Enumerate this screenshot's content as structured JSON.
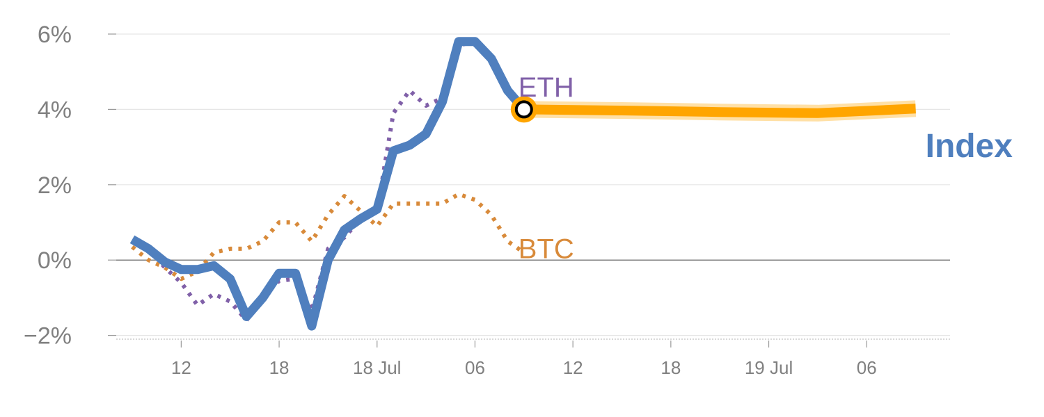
{
  "chart_data": {
    "type": "line",
    "y_ticks": [
      "6%",
      "4%",
      "2%",
      "0%",
      "−2%"
    ],
    "y_tick_values": [
      6,
      4,
      2,
      0,
      -2
    ],
    "ylim": [
      -2.1,
      6.3
    ],
    "x_ticks": [
      "12",
      "18",
      "18 Jul",
      "06",
      "12",
      "18",
      "19 Jul",
      "06"
    ],
    "x_tick_index": [
      3,
      9,
      15,
      21,
      27,
      33,
      39,
      45
    ],
    "x_range": [
      -1,
      50
    ],
    "grid": true,
    "colors": {
      "index": "#4f7fbe",
      "eth": "#8060a8",
      "btc": "#d88a3a",
      "forecast": "#ffa500",
      "grid": "#e6e6e6",
      "zero_line": "#808080",
      "tick_text": "#808080"
    },
    "labels": {
      "eth": "ETH",
      "btc": "BTC",
      "index": "Index"
    },
    "series": [
      {
        "key": "index",
        "name": "Index",
        "style": "solid",
        "x": [
          0,
          1,
          2,
          3,
          4,
          5,
          6,
          7,
          8,
          9,
          10,
          11,
          12,
          13,
          14,
          15,
          16,
          17,
          18,
          19,
          20,
          21,
          22,
          23,
          24
        ],
        "values": [
          0.55,
          0.3,
          -0.05,
          -0.25,
          -0.25,
          -0.15,
          -0.5,
          -1.5,
          -1.0,
          -0.35,
          -0.35,
          -1.75,
          0.0,
          0.8,
          1.1,
          1.35,
          2.9,
          3.05,
          3.35,
          4.2,
          5.8,
          5.8,
          5.35,
          4.5,
          4.0
        ]
      },
      {
        "key": "eth",
        "name": "ETH",
        "style": "dotted",
        "x": [
          0,
          1,
          2,
          3,
          4,
          5,
          6,
          7,
          8,
          9,
          10,
          11,
          12,
          13,
          14,
          15,
          16,
          17,
          18,
          19,
          20,
          21,
          22,
          23,
          24
        ],
        "values": [
          0.5,
          0.3,
          -0.2,
          -0.6,
          -1.2,
          -0.9,
          -1.1,
          -1.6,
          -1.0,
          -0.55,
          -0.5,
          -1.35,
          0.3,
          0.6,
          1.1,
          1.3,
          3.9,
          4.5,
          4.1,
          4.3,
          5.7,
          5.8,
          5.4,
          4.6,
          4.0
        ]
      },
      {
        "key": "btc",
        "name": "BTC",
        "style": "dotted",
        "x": [
          0,
          1,
          2,
          3,
          4,
          5,
          6,
          7,
          8,
          9,
          10,
          11,
          12,
          13,
          14,
          15,
          16,
          17,
          18,
          19,
          20,
          21,
          22,
          23,
          24
        ],
        "values": [
          0.35,
          0.0,
          -0.2,
          -0.5,
          -0.3,
          0.2,
          0.3,
          0.3,
          0.5,
          1.0,
          1.0,
          0.5,
          1.2,
          1.7,
          1.3,
          0.9,
          1.5,
          1.5,
          1.5,
          1.5,
          1.75,
          1.6,
          1.2,
          0.5,
          0.2
        ]
      },
      {
        "key": "forecast",
        "name": "",
        "style": "solid",
        "x": [
          24,
          30,
          36,
          42,
          48
        ],
        "values": [
          4.0,
          3.97,
          3.93,
          3.9,
          4.02
        ]
      }
    ],
    "marker": {
      "x": 24,
      "value": 4.0
    }
  }
}
